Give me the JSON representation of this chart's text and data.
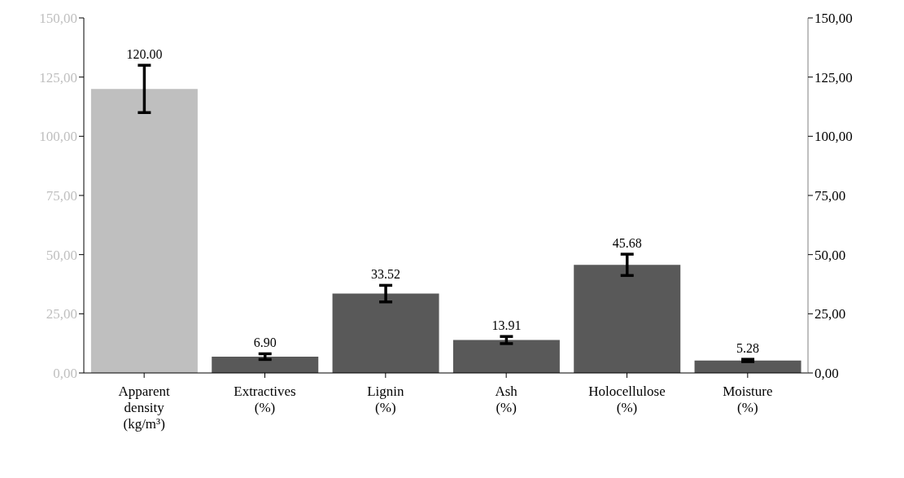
{
  "chart_data": {
    "type": "bar",
    "categories": [
      "Apparent\ndensity\n(kg/m³)",
      "Extractives\n(%)",
      "Lignin\n(%)",
      "Ash\n(%)",
      "Holocellulose\n(%)",
      "Moisture\n(%)"
    ],
    "series": [
      {
        "color": "#bfbfbf",
        "axis": "y",
        "values": [
          120,
          null,
          null,
          null,
          null,
          null
        ],
        "errors": [
          10,
          null,
          null,
          null,
          null,
          null
        ],
        "value_labels": [
          "120.00",
          null,
          null,
          null,
          null,
          null
        ]
      },
      {
        "color": "#595959",
        "axis": "y2",
        "values": [
          null,
          6.9,
          33.52,
          13.91,
          45.68,
          5.28
        ],
        "errors": [
          null,
          1.2,
          3.5,
          1.5,
          4.5,
          0.5
        ],
        "value_labels": [
          null,
          "6.90",
          "33.52",
          "13.91",
          "45.68",
          "5.28"
        ]
      }
    ],
    "ylim": [
      0,
      150
    ],
    "yticks": [
      {
        "value": 0,
        "label": "0,00"
      },
      {
        "value": 25,
        "label": "25,00"
      },
      {
        "value": 50,
        "label": "50,00"
      },
      {
        "value": 75,
        "label": "75,00"
      },
      {
        "value": 100,
        "label": "100,00"
      },
      {
        "value": 125,
        "label": "125,00"
      },
      {
        "value": 150,
        "label": "150,00"
      }
    ],
    "y2lim": [
      0,
      150
    ],
    "y2ticks": [
      {
        "value": 0,
        "label": "0,00"
      },
      {
        "value": 25,
        "label": "25,00"
      },
      {
        "value": 50,
        "label": "50,00"
      },
      {
        "value": 75,
        "label": "75,00"
      },
      {
        "value": 100,
        "label": "100,00"
      },
      {
        "value": 125,
        "label": "125,00"
      },
      {
        "value": 150,
        "label": "150,00"
      }
    ],
    "grid": false,
    "legend": false
  }
}
